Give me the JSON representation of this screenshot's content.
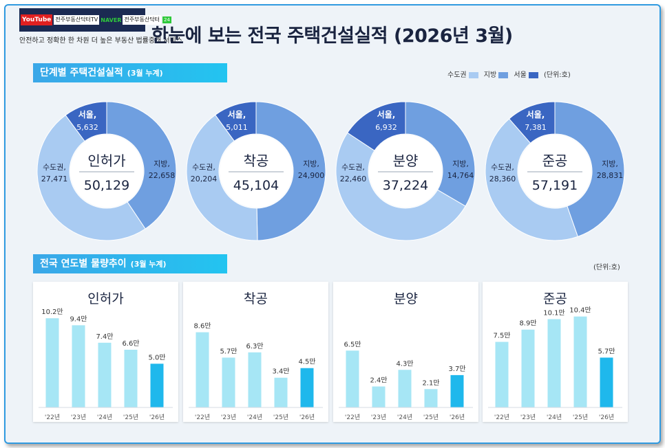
{
  "header": {
    "youtube": "YouTube",
    "channel": "전주부동산닥터TV",
    "naver": "NAVER",
    "blog": "전주부동산닥터",
    "badge": "24",
    "tagline": "안전하고 정확한 한 차원 더 높은 부동산 법률중개 서비스",
    "title": "한눈에 보는 전국 주택건설실적 (2026년 3월)"
  },
  "section1": {
    "title": "단계별 주택건설실적",
    "subtitle": "(3월 누계)"
  },
  "section2": {
    "title": "전국 연도별 물량추이",
    "subtitle": "(3월 누계)",
    "unit": "(단위:호)"
  },
  "legend": {
    "items": [
      {
        "label": "수도권",
        "color": "#a9cbf2"
      },
      {
        "label": "지방",
        "color": "#6f9fe0"
      },
      {
        "label": "서울",
        "color": "#3a66c2"
      }
    ],
    "unit": "(단위:호)"
  },
  "chart_data": [
    {
      "type": "pie",
      "title": "인허가",
      "total": "50,129",
      "slices": [
        {
          "name": "서울,",
          "value": 5632,
          "label": "5,632",
          "color": "#3a66c2"
        },
        {
          "name": "지방,",
          "value": 22658,
          "label": "22,658",
          "color": "#6f9fe0"
        },
        {
          "name": "수도권,",
          "value": 27471,
          "label": "27,471",
          "color": "#a9cbf2"
        }
      ]
    },
    {
      "type": "pie",
      "title": "착공",
      "total": "45,104",
      "slices": [
        {
          "name": "서울,",
          "value": 5011,
          "label": "5,011",
          "color": "#3a66c2"
        },
        {
          "name": "지방,",
          "value": 24900,
          "label": "24,900",
          "color": "#6f9fe0"
        },
        {
          "name": "수도권,",
          "value": 20204,
          "label": "20,204",
          "color": "#a9cbf2"
        }
      ]
    },
    {
      "type": "pie",
      "title": "분양",
      "total": "37,224",
      "slices": [
        {
          "name": "서울,",
          "value": 6932,
          "label": "6,932",
          "color": "#3a66c2"
        },
        {
          "name": "지방,",
          "value": 14764,
          "label": "14,764",
          "color": "#6f9fe0"
        },
        {
          "name": "수도권,",
          "value": 22460,
          "label": "22,460",
          "color": "#a9cbf2"
        }
      ]
    },
    {
      "type": "pie",
      "title": "준공",
      "total": "57,191",
      "slices": [
        {
          "name": "서울,",
          "value": 7381,
          "label": "7,381",
          "color": "#3a66c2"
        },
        {
          "name": "지방,",
          "value": 28831,
          "label": "28,831",
          "color": "#6f9fe0"
        },
        {
          "name": "수도권,",
          "value": 28360,
          "label": "28,360",
          "color": "#a9cbf2"
        }
      ]
    },
    {
      "type": "bar",
      "title": "인허가",
      "categories": [
        "'22년",
        "'23년",
        "'24년",
        "'25년",
        "'26년"
      ],
      "values": [
        10.2,
        9.4,
        7.4,
        6.6,
        5.0
      ],
      "labels": [
        "10.2만",
        "9.4만",
        "7.4만",
        "6.6만",
        "5.0만"
      ]
    },
    {
      "type": "bar",
      "title": "착공",
      "categories": [
        "'22년",
        "'23년",
        "'24년",
        "'25년",
        "'26년"
      ],
      "values": [
        8.6,
        5.7,
        6.3,
        3.4,
        4.5
      ],
      "labels": [
        "8.6만",
        "5.7만",
        "6.3만",
        "3.4만",
        "4.5만"
      ]
    },
    {
      "type": "bar",
      "title": "분양",
      "categories": [
        "'22년",
        "'23년",
        "'24년",
        "'25년",
        "'26년"
      ],
      "values": [
        6.5,
        2.4,
        4.3,
        2.1,
        3.7
      ],
      "labels": [
        "6.5만",
        "2.4만",
        "4.3만",
        "2.1만",
        "3.7만"
      ]
    },
    {
      "type": "bar",
      "title": "준공",
      "categories": [
        "'22년",
        "'23년",
        "'24년",
        "'25년",
        "'26년"
      ],
      "values": [
        7.5,
        8.9,
        10.1,
        10.4,
        5.7
      ],
      "labels": [
        "7.5만",
        "8.9만",
        "10.1만",
        "10.4만",
        "5.7만"
      ]
    }
  ],
  "colors": {
    "bar_past": "#a6e6f5",
    "bar_current": "#1fb8ec",
    "accent": "#2f9ae0"
  }
}
